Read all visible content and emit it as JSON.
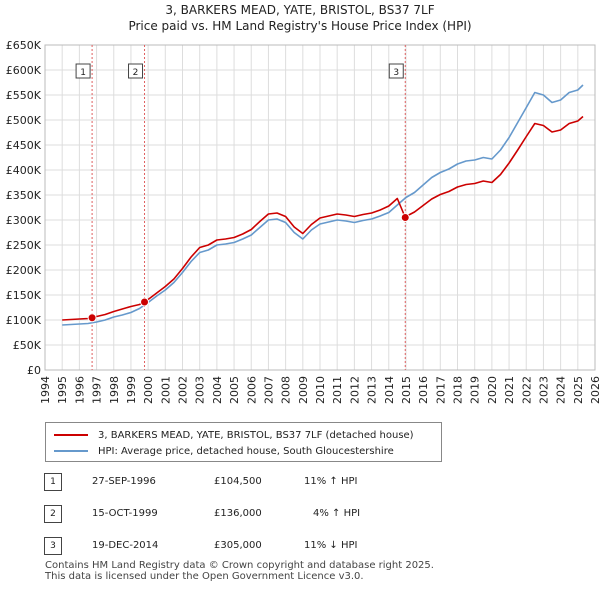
{
  "title": "3, BARKERS MEAD, YATE, BRISTOL, BS37 7LF",
  "subtitle": "Price paid vs. HM Land Registry's House Price Index (HPI)",
  "colors": {
    "property": "#cc0000",
    "hpi": "#6699cc",
    "grid": "#dddddd",
    "vline": "#e06060"
  },
  "legend": {
    "property_label": "3, BARKERS MEAD, YATE, BRISTOL, BS37 7LF (detached house)",
    "hpi_label": "HPI: Average price, detached house, South Gloucestershire"
  },
  "sales": [
    {
      "num": "1",
      "date": "27-SEP-1996",
      "price": "£104,500",
      "hpi": "11% ↑ HPI"
    },
    {
      "num": "2",
      "date": "15-OCT-1999",
      "price": "£136,000",
      "hpi": "4% ↑ HPI"
    },
    {
      "num": "3",
      "date": "19-DEC-2014",
      "price": "£305,000",
      "hpi": "11% ↓ HPI"
    }
  ],
  "footer": {
    "line1": "Contains HM Land Registry data © Crown copyright and database right 2025.",
    "line2": "This data is licensed under the Open Government Licence v3.0."
  },
  "chart_data": {
    "type": "line",
    "title": "3, BARKERS MEAD, YATE, BRISTOL, BS37 7LF",
    "xlim": [
      1994,
      2026
    ],
    "ylim": [
      0,
      650000
    ],
    "x_ticks": [
      "1994",
      "1995",
      "1996",
      "1997",
      "1998",
      "1999",
      "2000",
      "2001",
      "2002",
      "2003",
      "2004",
      "2005",
      "2006",
      "2007",
      "2008",
      "2009",
      "2010",
      "2011",
      "2012",
      "2013",
      "2014",
      "2015",
      "2016",
      "2017",
      "2018",
      "2019",
      "2020",
      "2021",
      "2022",
      "2023",
      "2024",
      "2025",
      "2026"
    ],
    "y_ticks": [
      {
        "value": 0,
        "label": "£0"
      },
      {
        "value": 50000,
        "label": "£50K"
      },
      {
        "value": 100000,
        "label": "£100K"
      },
      {
        "value": 150000,
        "label": "£150K"
      },
      {
        "value": 200000,
        "label": "£200K"
      },
      {
        "value": 250000,
        "label": "£250K"
      },
      {
        "value": 300000,
        "label": "£300K"
      },
      {
        "value": 350000,
        "label": "£350K"
      },
      {
        "value": 400000,
        "label": "£400K"
      },
      {
        "value": 450000,
        "label": "£450K"
      },
      {
        "value": 500000,
        "label": "£500K"
      },
      {
        "value": 550000,
        "label": "£550K"
      },
      {
        "value": 600000,
        "label": "£600K"
      },
      {
        "value": 650000,
        "label": "£650K"
      }
    ],
    "series": [
      {
        "name": "HPI: Average price, detached house, South Gloucestershire",
        "x": [
          1995.0,
          1995.5,
          1996.0,
          1996.5,
          1997.0,
          1997.5,
          1998.0,
          1998.5,
          1999.0,
          1999.5,
          2000.0,
          2000.5,
          2001.0,
          2001.5,
          2002.0,
          2002.5,
          2003.0,
          2003.5,
          2004.0,
          2004.5,
          2005.0,
          2005.5,
          2006.0,
          2006.5,
          2007.0,
          2007.5,
          2008.0,
          2008.5,
          2009.0,
          2009.5,
          2010.0,
          2010.5,
          2011.0,
          2011.5,
          2012.0,
          2012.5,
          2013.0,
          2013.5,
          2014.0,
          2014.5,
          2015.0,
          2015.5,
          2016.0,
          2016.5,
          2017.0,
          2017.5,
          2018.0,
          2018.5,
          2019.0,
          2019.5,
          2020.0,
          2020.5,
          2021.0,
          2021.5,
          2022.0,
          2022.5,
          2023.0,
          2023.5,
          2024.0,
          2024.5,
          2025.0,
          2025.3
        ],
        "values": [
          90000,
          91000,
          92000,
          93000,
          96000,
          100000,
          106000,
          110000,
          115000,
          123000,
          135000,
          148000,
          160000,
          175000,
          195000,
          217000,
          235000,
          240000,
          250000,
          252000,
          255000,
          262000,
          270000,
          285000,
          300000,
          302000,
          295000,
          275000,
          262000,
          280000,
          292000,
          296000,
          300000,
          298000,
          295000,
          299000,
          302000,
          308000,
          315000,
          330000,
          345000,
          355000,
          370000,
          385000,
          395000,
          402000,
          412000,
          418000,
          420000,
          425000,
          422000,
          440000,
          465000,
          495000,
          525000,
          555000,
          550000,
          535000,
          540000,
          555000,
          560000,
          570000
        ]
      },
      {
        "name": "3, BARKERS MEAD, YATE, BRISTOL, BS37 7LF (detached house)",
        "x": [
          1995.0,
          1995.5,
          1996.0,
          1996.5,
          1996.74,
          1997.0,
          1997.5,
          1998.0,
          1998.5,
          1999.0,
          1999.5,
          1999.79,
          2000.0,
          2000.5,
          2001.0,
          2001.5,
          2002.0,
          2002.5,
          2003.0,
          2003.5,
          2004.0,
          2004.5,
          2005.0,
          2005.5,
          2006.0,
          2006.5,
          2007.0,
          2007.5,
          2008.0,
          2008.5,
          2009.0,
          2009.5,
          2010.0,
          2010.5,
          2011.0,
          2011.5,
          2012.0,
          2012.5,
          2013.0,
          2013.5,
          2014.0,
          2014.5,
          2014.96,
          2015.0,
          2015.5,
          2016.0,
          2016.5,
          2017.0,
          2017.5,
          2018.0,
          2018.5,
          2019.0,
          2019.5,
          2020.0,
          2020.5,
          2021.0,
          2021.5,
          2022.0,
          2022.5,
          2023.0,
          2023.5,
          2024.0,
          2024.5,
          2025.0,
          2025.3
        ],
        "values": [
          100000,
          101000,
          102000,
          103000,
          104500,
          107000,
          111000,
          117000,
          122000,
          127000,
          131000,
          136000,
          141000,
          154000,
          167000,
          182000,
          203000,
          226000,
          245000,
          250000,
          260000,
          262000,
          265000,
          272000,
          281000,
          297000,
          312000,
          314000,
          307000,
          286000,
          273000,
          291000,
          304000,
          308000,
          312000,
          310000,
          307000,
          311000,
          314000,
          320000,
          328000,
          343000,
          305000,
          307000,
          316000,
          329000,
          342000,
          351000,
          357000,
          366000,
          371000,
          373000,
          378000,
          375000,
          391000,
          414000,
          440000,
          467000,
          493000,
          489000,
          476000,
          480000,
          493000,
          498000,
          507000
        ]
      }
    ],
    "sale_points": [
      {
        "label": "1",
        "x": 1996.74,
        "y": 104500
      },
      {
        "label": "2",
        "x": 1999.79,
        "y": 136000
      },
      {
        "label": "3",
        "x": 2014.96,
        "y": 305000
      }
    ]
  }
}
